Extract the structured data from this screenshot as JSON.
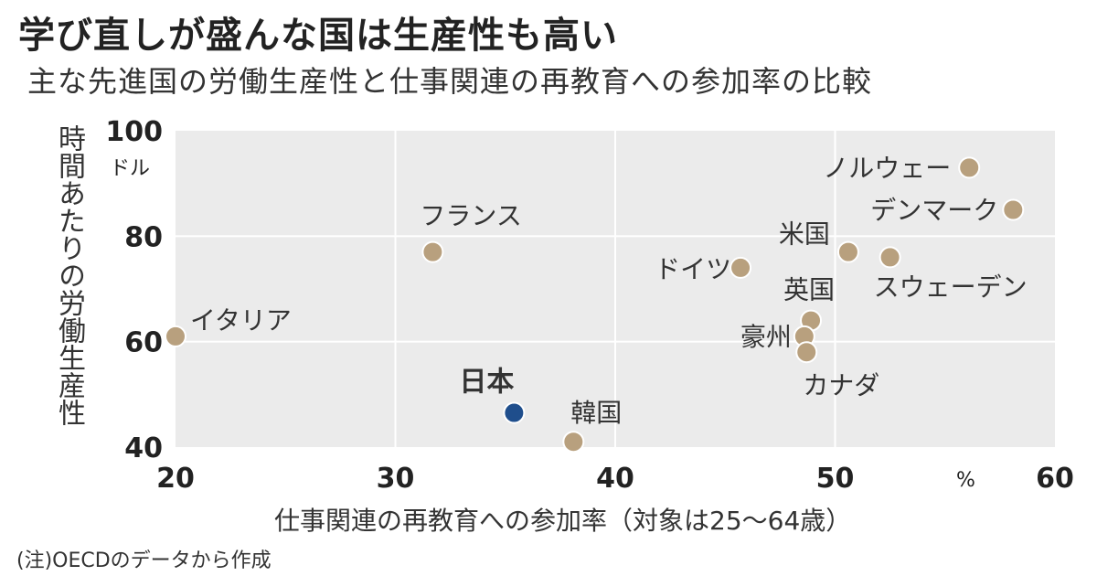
{
  "header": {
    "title": "学び直しが盛んな国は生産性も高い",
    "subtitle": "主な先進国の労働生産性と仕事関連の再教育への参加率の比較"
  },
  "footer": {
    "note": "(注)OECDのデータから作成"
  },
  "chart_data": {
    "type": "scatter",
    "title": "学び直しが盛んな国は生産性も高い",
    "subtitle": "主な先進国の労働生産性と仕事関連の再教育への参加率の比較",
    "xlabel": "仕事関連の再教育への参加率（対象は25〜64歳）",
    "ylabel": "時間あたりの労働生産性",
    "x_unit": "%",
    "y_unit": "ドル",
    "xlim": [
      20,
      60
    ],
    "ylim": [
      40,
      100
    ],
    "x_ticks": [
      "20",
      "30",
      "40",
      "50",
      "60"
    ],
    "y_ticks": [
      "40",
      "60",
      "80",
      "100"
    ],
    "grid": true,
    "point_color": "#b8a07e",
    "highlight_color": "#1f4e8c",
    "points": [
      {
        "label": "イタリア",
        "x": 20,
        "y": 61
      },
      {
        "label": "フランス",
        "x": 31.7,
        "y": 77
      },
      {
        "label": "日本",
        "x": 35.4,
        "y": 46.5,
        "highlight": true
      },
      {
        "label": "韓国",
        "x": 38.1,
        "y": 41
      },
      {
        "label": "ドイツ",
        "x": 45.7,
        "y": 74
      },
      {
        "label": "米国",
        "x": 50.6,
        "y": 77
      },
      {
        "label": "スウェーデン",
        "x": 52.5,
        "y": 76
      },
      {
        "label": "英国",
        "x": 48.9,
        "y": 64
      },
      {
        "label": "豪州",
        "x": 48.6,
        "y": 61
      },
      {
        "label": "カナダ",
        "x": 48.7,
        "y": 58
      },
      {
        "label": "ノルウェー",
        "x": 56.1,
        "y": 93
      },
      {
        "label": "デンマーク",
        "x": 58.1,
        "y": 85
      }
    ]
  }
}
